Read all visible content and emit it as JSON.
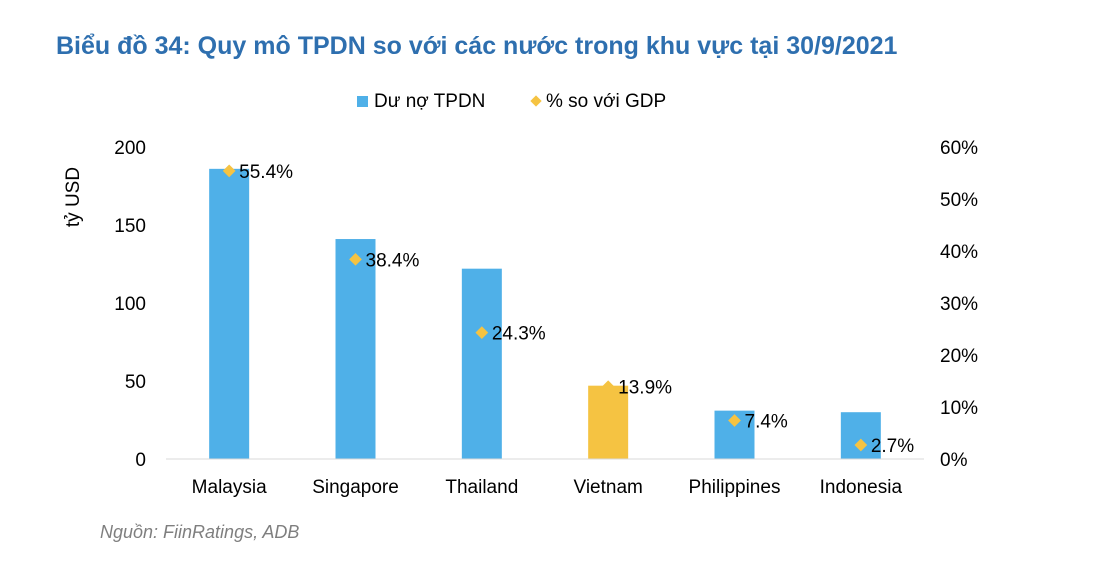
{
  "title": "Biểu đồ 34: Quy mô TPDN so với các nước trong khu vực tại 30/9/2021",
  "source": "Nguồn: FiinRatings, ADB",
  "chart_data": {
    "type": "bar",
    "categories": [
      "Malaysia",
      "Singapore",
      "Thailand",
      "Vietnam",
      "Philippines",
      "Indonesia"
    ],
    "series": [
      {
        "name": "Dư nợ TPDN",
        "type": "bar",
        "axis": "left",
        "values": [
          186,
          141,
          122,
          47,
          31,
          30
        ]
      },
      {
        "name": "% so với GDP",
        "type": "scatter",
        "axis": "right",
        "values": [
          55.4,
          38.4,
          24.3,
          13.9,
          7.4,
          2.7
        ],
        "labels": [
          "55.4%",
          "38.4%",
          "24.3%",
          "13.9%",
          "7.4%",
          "2.7%"
        ]
      }
    ],
    "ylabel": "tỷ USD",
    "ylim": [
      0,
      200
    ],
    "yticks": [
      "0",
      "50",
      "100",
      "150",
      "200"
    ],
    "y2lim": [
      0,
      60
    ],
    "y2ticks": [
      "0%",
      "10%",
      "20%",
      "30%",
      "40%",
      "50%",
      "60%"
    ],
    "highlight_category": "Vietnam",
    "colors": {
      "bar": "#4fb0e8",
      "highlight": "#f5c342",
      "marker": "#f5c342",
      "title": "#2e6faf"
    },
    "legend": {
      "position": "top-center"
    }
  }
}
